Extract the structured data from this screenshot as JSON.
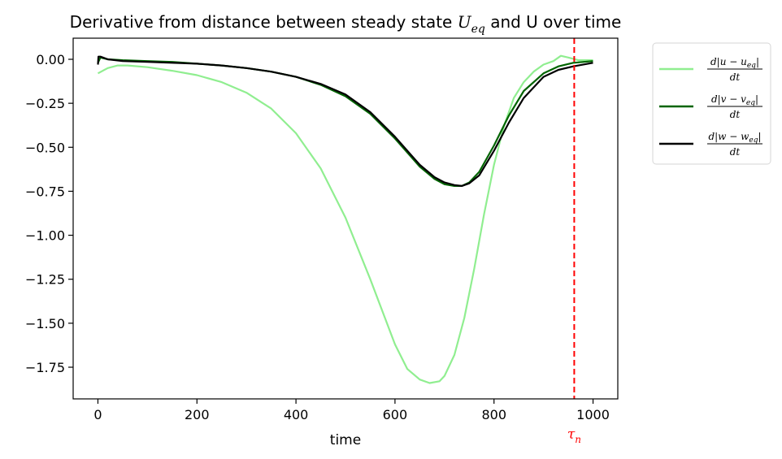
{
  "chart_data": {
    "type": "line",
    "title_prefix": "Derivative from distance between steady state ",
    "title_symbol": "U",
    "title_subscript": "eq",
    "title_suffix": " and U over time",
    "xlabel": "time",
    "ylabel": "",
    "xlim": [
      -50,
      1050
    ],
    "ylim": [
      -1.93,
      0.12
    ],
    "xticks": [
      0,
      200,
      400,
      600,
      800,
      1000
    ],
    "xtick_labels": [
      "0",
      "200",
      "400",
      "600",
      "800",
      "1000"
    ],
    "yticks": [
      0.0,
      -0.25,
      -0.5,
      -0.75,
      -1.0,
      -1.25,
      -1.5,
      -1.75
    ],
    "ytick_labels": [
      "0.00",
      "−0.25",
      "−0.50",
      "−0.75",
      "−1.00",
      "−1.25",
      "−1.50",
      "−1.75"
    ],
    "grid": false,
    "legend_position": "outside-upper-right",
    "vline": {
      "x": 962,
      "color": "#ff0000",
      "style": "dashed",
      "label": "τ",
      "label_sub": "n"
    },
    "series": [
      {
        "name": "d|u − u_eq| / dt",
        "legend_numerator": "d|u − u",
        "legend_num_sub": "eq",
        "legend_denominator": "dt",
        "color": "#90ee90",
        "x": [
          0,
          20,
          40,
          60,
          100,
          150,
          200,
          250,
          300,
          350,
          400,
          450,
          500,
          550,
          600,
          625,
          650,
          670,
          690,
          700,
          720,
          740,
          760,
          780,
          800,
          820,
          840,
          860,
          880,
          900,
          920,
          935,
          950,
          970,
          990,
          1000
        ],
        "y": [
          -0.08,
          -0.05,
          -0.035,
          -0.035,
          -0.045,
          -0.065,
          -0.09,
          -0.13,
          -0.19,
          -0.28,
          -0.42,
          -0.62,
          -0.9,
          -1.25,
          -1.62,
          -1.76,
          -1.82,
          -1.84,
          -1.83,
          -1.8,
          -1.68,
          -1.47,
          -1.19,
          -0.88,
          -0.6,
          -0.38,
          -0.22,
          -0.13,
          -0.07,
          -0.03,
          -0.01,
          0.02,
          0.01,
          -0.005,
          -0.005,
          -0.005
        ]
      },
      {
        "name": "d|v − v_eq| / dt",
        "legend_numerator": "d|v − v",
        "legend_num_sub": "eq",
        "legend_denominator": "dt",
        "color": "#006400",
        "x": [
          0,
          5,
          20,
          50,
          100,
          150,
          200,
          250,
          300,
          350,
          400,
          450,
          500,
          550,
          600,
          650,
          680,
          700,
          720,
          735,
          750,
          770,
          800,
          830,
          860,
          900,
          930,
          960,
          1000
        ],
        "y": [
          -0.02,
          0.01,
          0.0,
          -0.005,
          -0.01,
          -0.015,
          -0.025,
          -0.035,
          -0.05,
          -0.07,
          -0.1,
          -0.145,
          -0.21,
          -0.31,
          -0.45,
          -0.61,
          -0.68,
          -0.71,
          -0.72,
          -0.72,
          -0.7,
          -0.64,
          -0.49,
          -0.32,
          -0.18,
          -0.08,
          -0.04,
          -0.02,
          -0.01
        ]
      },
      {
        "name": "d|w − w_eq| / dt",
        "legend_numerator": "d|w − w",
        "legend_num_sub": "eq",
        "legend_denominator": "dt",
        "color": "#000000",
        "x": [
          0,
          1,
          5,
          20,
          50,
          100,
          150,
          200,
          250,
          300,
          350,
          400,
          450,
          500,
          550,
          600,
          650,
          680,
          700,
          720,
          735,
          750,
          770,
          800,
          830,
          860,
          900,
          930,
          960,
          1000
        ],
        "y": [
          -0.03,
          0.015,
          0.015,
          0.0,
          -0.01,
          -0.015,
          -0.02,
          -0.025,
          -0.035,
          -0.05,
          -0.07,
          -0.1,
          -0.14,
          -0.2,
          -0.3,
          -0.44,
          -0.6,
          -0.67,
          -0.7,
          -0.715,
          -0.72,
          -0.705,
          -0.66,
          -0.52,
          -0.36,
          -0.22,
          -0.1,
          -0.06,
          -0.04,
          -0.02
        ]
      }
    ]
  }
}
